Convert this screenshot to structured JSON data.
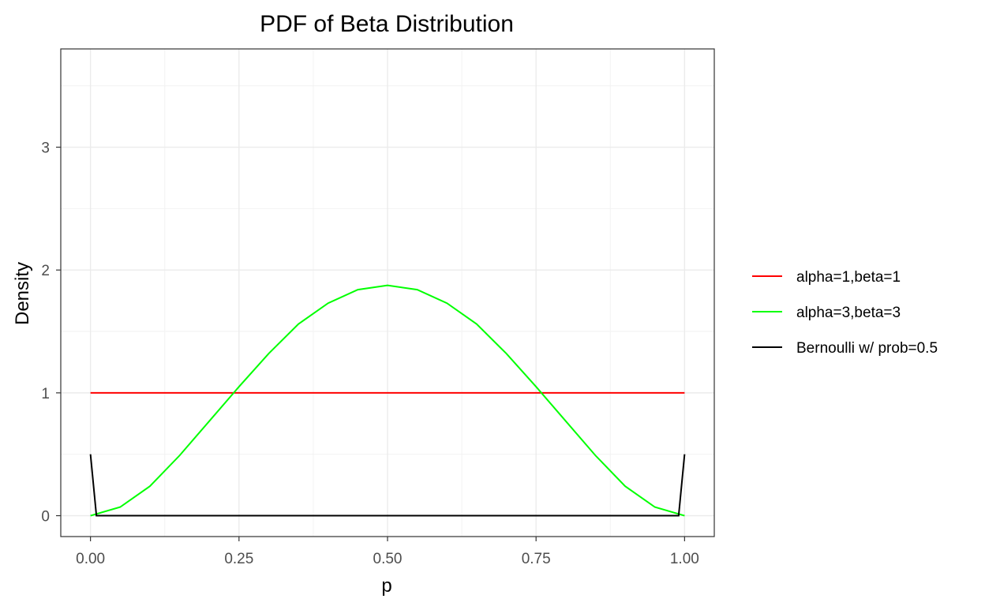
{
  "chart_data": {
    "type": "line",
    "title": "PDF of Beta Distribution",
    "xlabel": "p",
    "ylabel": "Density",
    "xlim": [
      -0.05,
      1.05
    ],
    "ylim": [
      -0.17,
      3.8
    ],
    "x_ticks": [
      "0.00",
      "0.25",
      "0.50",
      "0.75",
      "1.00"
    ],
    "y_ticks": [
      "0",
      "1",
      "2",
      "3"
    ],
    "grid": true,
    "legend_position": "right",
    "series": [
      {
        "name": "alpha=1,beta=1",
        "color": "#ff0000",
        "x": [
          0,
          0.1,
          0.2,
          0.3,
          0.4,
          0.5,
          0.6,
          0.7,
          0.8,
          0.9,
          1
        ],
        "y": [
          1,
          1,
          1,
          1,
          1,
          1,
          1,
          1,
          1,
          1,
          1
        ]
      },
      {
        "name": "alpha=3,beta=3",
        "color": "#00ff00",
        "x": [
          0,
          0.05,
          0.1,
          0.15,
          0.2,
          0.25,
          0.3,
          0.35,
          0.4,
          0.45,
          0.5,
          0.55,
          0.6,
          0.65,
          0.7,
          0.75,
          0.8,
          0.85,
          0.9,
          0.95,
          1
        ],
        "y": [
          0,
          0.07,
          0.24,
          0.49,
          0.77,
          1.05,
          1.32,
          1.56,
          1.73,
          1.84,
          1.875,
          1.84,
          1.73,
          1.56,
          1.32,
          1.05,
          0.77,
          0.49,
          0.24,
          0.07,
          0
        ]
      },
      {
        "name": "Bernoulli w/ prob=0.5",
        "color": "#000000",
        "x": [
          0,
          0.01,
          0.02,
          0.5,
          0.98,
          0.99,
          1
        ],
        "y": [
          0.5,
          0,
          0,
          0,
          0,
          0,
          0.5
        ]
      }
    ]
  }
}
